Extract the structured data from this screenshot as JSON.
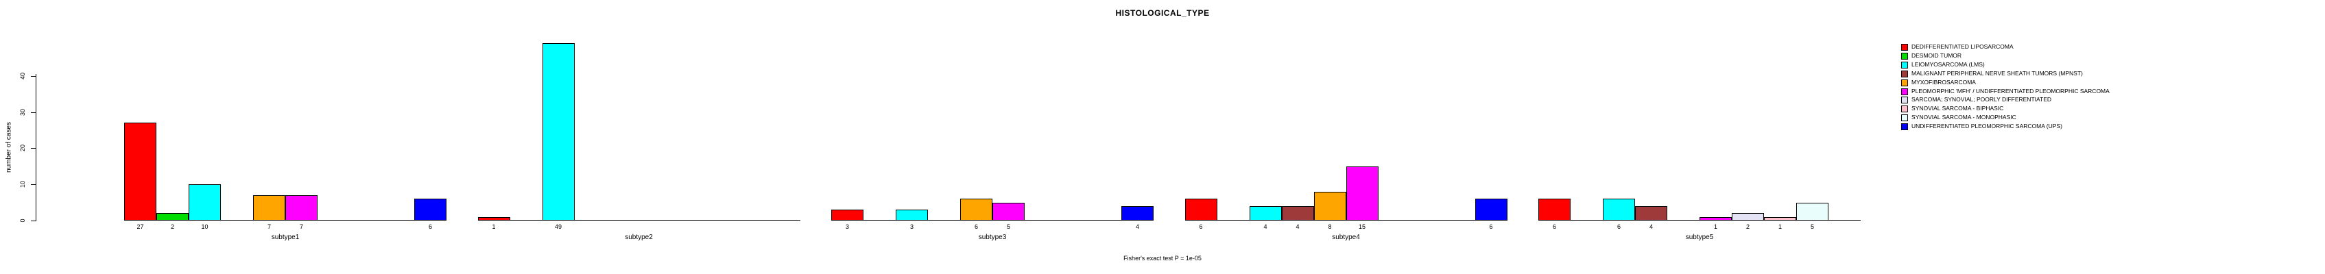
{
  "chart_data": {
    "type": "bar",
    "title": "HISTOLOGICAL_TYPE",
    "ylabel": "number of cases",
    "ylim": [
      0,
      49
    ],
    "yticks": [
      0,
      10,
      20,
      30,
      40
    ],
    "grid": false,
    "legend_position": "right",
    "bar_value_labels_shown": true,
    "annotation": "Fisher's exact test P = 1e-05",
    "categories": [
      "subtype1",
      "subtype2",
      "subtype3",
      "subtype4",
      "subtype5"
    ],
    "series": [
      {
        "name": "DEDIFFERENTIATED LIPOSARCOMA",
        "color": "#FF0000",
        "values": [
          27,
          1,
          3,
          6,
          6
        ]
      },
      {
        "name": "DESMOID TUMOR",
        "color": "#00DD00",
        "values": [
          2,
          0,
          0,
          0,
          0
        ]
      },
      {
        "name": "LEIOMYOSARCOMA (LMS)",
        "color": "#00FFFF",
        "values": [
          10,
          49,
          3,
          4,
          6
        ]
      },
      {
        "name": "MALIGNANT PERIPHERAL NERVE SHEATH TUMORS (MPNST)",
        "color": "#9E3A3A",
        "values": [
          0,
          0,
          0,
          4,
          4
        ]
      },
      {
        "name": "MYXOFIBROSARCOMA",
        "color": "#FFA500",
        "values": [
          7,
          0,
          6,
          8,
          0
        ]
      },
      {
        "name": "PLEOMORPHIC 'MFH' / UNDIFFERENTIATED PLEOMORPHIC SARCOMA",
        "color": "#FF00FF",
        "values": [
          7,
          0,
          5,
          15,
          1
        ]
      },
      {
        "name": "SARCOMA; SYNOVIAL; POORLY DIFFERENTIATED",
        "color": "#E3E3F5",
        "values": [
          0,
          0,
          0,
          0,
          2
        ]
      },
      {
        "name": "SYNOVIAL SARCOMA - BIPHASIC",
        "color": "#FFC0CB",
        "values": [
          0,
          0,
          0,
          0,
          1
        ]
      },
      {
        "name": "SYNOVIAL SARCOMA - MONOPHASIC",
        "color": "#EAFDFD",
        "values": [
          0,
          0,
          0,
          0,
          5
        ]
      },
      {
        "name": "UNDIFFERENTIATED PLEOMORPHIC SARCOMA (UPS)",
        "color": "#0000FF",
        "values": [
          6,
          0,
          4,
          6,
          0
        ]
      }
    ]
  }
}
